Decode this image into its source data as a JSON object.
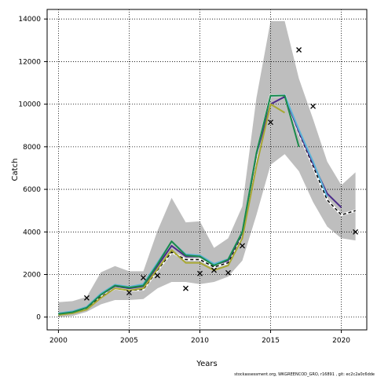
{
  "chart_data": {
    "type": "line",
    "xlabel": "Years",
    "ylabel": "Catch",
    "xlim": [
      1999.2,
      2021.8
    ],
    "ylim": [
      -600,
      14450
    ],
    "xticks": [
      2000,
      2005,
      2010,
      2015,
      2020
    ],
    "yticks": [
      0,
      2000,
      4000,
      6000,
      8000,
      10000,
      12000,
      14000
    ],
    "grid": true,
    "footer": "stockassessment.org, WKGREENCOD_GRO, r16891 , git: ec2c2a0c6dde",
    "band": {
      "color": "#bebebe",
      "x": [
        2000,
        2001,
        2002,
        2003,
        2004,
        2005,
        2006,
        2007,
        2008,
        2009,
        2010,
        2011,
        2012,
        2013,
        2014,
        2015,
        2016,
        2017,
        2018,
        2019,
        2020,
        2021
      ],
      "upper": [
        700,
        750,
        950,
        2100,
        2400,
        2150,
        2150,
        4050,
        5600,
        4450,
        4500,
        3250,
        3700,
        5200,
        10300,
        13900,
        13900,
        11200,
        9300,
        7300,
        6200,
        6800
      ],
      "lower": [
        0,
        50,
        250,
        600,
        800,
        800,
        850,
        1350,
        1650,
        1650,
        1550,
        1650,
        1900,
        2650,
        4800,
        7150,
        7650,
        6850,
        5400,
        4250,
        3700,
        3600
      ]
    },
    "series": [
      {
        "color": "#000000",
        "dashed": true,
        "x": [
          2000,
          2001,
          2002,
          2003,
          2004,
          2005,
          2006,
          2007,
          2008,
          2009,
          2010,
          2011,
          2012,
          2013,
          2014,
          2015,
          2016,
          2017,
          2018,
          2019,
          2020,
          2021
        ],
        "values": [
          150,
          220,
          420,
          950,
          1350,
          1250,
          1300,
          2200,
          3050,
          2700,
          2700,
          2350,
          2550,
          3900,
          7600,
          10400,
          10400,
          8650,
          7100,
          5500,
          4800,
          5000
        ]
      },
      {
        "color": "#4b2a8a",
        "x": [
          2000,
          2001,
          2002,
          2003,
          2004,
          2005,
          2006,
          2007,
          2008,
          2009,
          2010,
          2011,
          2012,
          2013,
          2014,
          2015,
          2016,
          2017,
          2018,
          2019,
          2020
        ],
        "values": [
          150,
          250,
          450,
          1050,
          1450,
          1350,
          1450,
          2400,
          3350,
          2850,
          2850,
          2450,
          2650,
          3950,
          7650,
          10000,
          10350,
          8700,
          7200,
          5800,
          5150
        ]
      },
      {
        "color": "#5ab4d8",
        "x": [
          2000,
          2001,
          2002,
          2003,
          2004,
          2005,
          2006,
          2007,
          2008,
          2009,
          2010,
          2011,
          2012,
          2013,
          2014,
          2015,
          2016,
          2017,
          2018,
          2019
        ],
        "values": [
          180,
          270,
          480,
          1100,
          1520,
          1420,
          1550,
          2550,
          3550,
          2950,
          2900,
          2500,
          2720,
          4000,
          7700,
          10380,
          10420,
          8800,
          7300,
          5650
        ]
      },
      {
        "color": "#a8a832",
        "x": [
          2000,
          2001,
          2002,
          2003,
          2004,
          2005,
          2006,
          2007,
          2008,
          2009,
          2010,
          2011,
          2012,
          2013,
          2014,
          2015,
          2016
        ],
        "values": [
          100,
          180,
          350,
          900,
          1350,
          1250,
          1350,
          2250,
          3150,
          2550,
          2550,
          2200,
          2420,
          3700,
          7100,
          10000,
          9600
        ]
      },
      {
        "color": "#1a8a4a",
        "x": [
          2000,
          2001,
          2002,
          2003,
          2004,
          2005,
          2006,
          2007,
          2008,
          2009,
          2010,
          2011,
          2012,
          2013,
          2014,
          2015,
          2016,
          2017
        ],
        "values": [
          150,
          230,
          440,
          1050,
          1480,
          1380,
          1480,
          2480,
          3560,
          2900,
          2850,
          2420,
          2700,
          4000,
          7700,
          10400,
          10400,
          8000
        ]
      }
    ],
    "observations": {
      "marker": "x",
      "x": [
        2002,
        2005,
        2006,
        2007,
        2009,
        2010,
        2011,
        2012,
        2013,
        2015,
        2017,
        2018,
        2021
      ],
      "values": [
        900,
        1150,
        1850,
        1950,
        1350,
        2050,
        2200,
        2080,
        3350,
        9150,
        12550,
        9900,
        4000
      ]
    }
  }
}
